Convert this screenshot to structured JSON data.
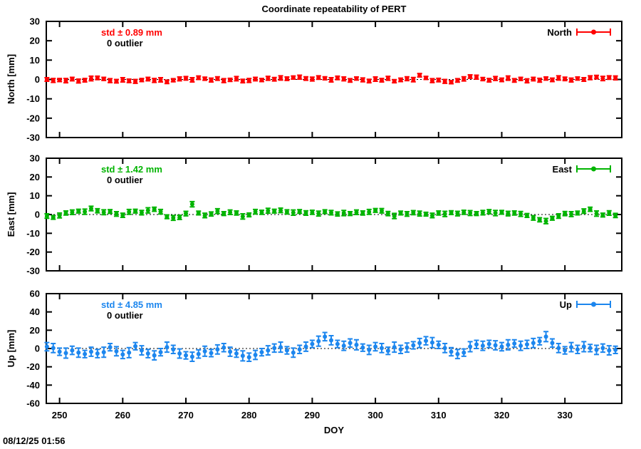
{
  "title": "Coordinate repeatability of PERT",
  "timestamp": "08/12/25 01:56",
  "xlabel": "DOY",
  "chart_data": [
    {
      "type": "errorbar",
      "name": "North",
      "legend": "North",
      "color": "#ff0000",
      "std_label": "std ± 0.89 mm",
      "outlier_label": "0 outlier",
      "ylabel": "North [mm]",
      "ylim": [
        -30,
        30
      ],
      "ytick_step": 10,
      "xlim": [
        247.9,
        339.0
      ],
      "xticks": [
        250,
        260,
        270,
        280,
        290,
        300,
        310,
        320,
        330
      ],
      "zero_line": true,
      "points": [
        [
          248,
          0.0,
          0.9
        ],
        [
          249,
          -0.5,
          1.0
        ],
        [
          250,
          -0.3,
          0.8
        ],
        [
          251,
          -0.6,
          1.1
        ],
        [
          252,
          0.2,
          0.9
        ],
        [
          253,
          -0.8,
          1.0
        ],
        [
          254,
          -0.4,
          0.9
        ],
        [
          255,
          0.5,
          1.2
        ],
        [
          256,
          0.8,
          0.9
        ],
        [
          257,
          0.3,
          0.8
        ],
        [
          258,
          -0.6,
          1.0
        ],
        [
          259,
          -0.9,
          0.9
        ],
        [
          260,
          -0.2,
          1.1
        ],
        [
          261,
          -0.7,
          0.9
        ],
        [
          262,
          -1.0,
          1.0
        ],
        [
          263,
          -0.3,
          0.8
        ],
        [
          264,
          0.2,
          0.9
        ],
        [
          265,
          -0.5,
          1.0
        ],
        [
          266,
          -0.2,
          1.1
        ],
        [
          267,
          -1.2,
          0.9
        ],
        [
          268,
          -0.4,
          0.8
        ],
        [
          269,
          0.3,
          1.0
        ],
        [
          270,
          0.6,
          0.9
        ],
        [
          271,
          -0.2,
          1.1
        ],
        [
          272,
          0.9,
          0.9
        ],
        [
          273,
          0.4,
          0.8
        ],
        [
          274,
          -0.3,
          1.0
        ],
        [
          275,
          0.5,
          0.9
        ],
        [
          276,
          -0.6,
          1.0
        ],
        [
          277,
          -0.2,
          0.8
        ],
        [
          278,
          0.4,
          1.1
        ],
        [
          279,
          -0.8,
          0.9
        ],
        [
          280,
          -0.5,
          1.0
        ],
        [
          281,
          0.2,
          0.9
        ],
        [
          282,
          -0.3,
          0.8
        ],
        [
          283,
          0.6,
          1.0
        ],
        [
          284,
          0.1,
          0.9
        ],
        [
          285,
          0.8,
          1.1
        ],
        [
          286,
          0.4,
          0.9
        ],
        [
          287,
          1.0,
          0.8
        ],
        [
          288,
          1.2,
          1.0
        ],
        [
          289,
          0.5,
          0.9
        ],
        [
          290,
          0.2,
          1.0
        ],
        [
          291,
          1.0,
          0.9
        ],
        [
          292,
          0.6,
          0.8
        ],
        [
          293,
          -0.2,
          1.1
        ],
        [
          294,
          0.8,
          0.9
        ],
        [
          295,
          0.3,
          1.0
        ],
        [
          296,
          -0.5,
          0.9
        ],
        [
          297,
          0.5,
          0.8
        ],
        [
          298,
          -0.2,
          1.0
        ],
        [
          299,
          -0.8,
          0.9
        ],
        [
          300,
          0.2,
          1.1
        ],
        [
          301,
          -0.4,
          0.9
        ],
        [
          302,
          0.6,
          1.0
        ],
        [
          303,
          -0.9,
          0.8
        ],
        [
          304,
          -0.2,
          0.9
        ],
        [
          305,
          0.4,
          1.0
        ],
        [
          306,
          -0.1,
          1.1
        ],
        [
          307,
          2.2,
          0.9
        ],
        [
          308,
          0.8,
          0.8
        ],
        [
          309,
          -0.6,
          1.0
        ],
        [
          310,
          -0.3,
          0.9
        ],
        [
          311,
          -1.0,
          1.0
        ],
        [
          312,
          -1.4,
          0.8
        ],
        [
          313,
          -0.5,
          0.9
        ],
        [
          314,
          0.3,
          1.1
        ],
        [
          315,
          1.5,
          0.9
        ],
        [
          316,
          1.2,
          1.0
        ],
        [
          317,
          0.2,
          0.8
        ],
        [
          318,
          -0.4,
          0.9
        ],
        [
          319,
          0.5,
          1.0
        ],
        [
          320,
          -0.2,
          0.9
        ],
        [
          321,
          0.7,
          1.1
        ],
        [
          322,
          -0.5,
          0.9
        ],
        [
          323,
          0.3,
          0.8
        ],
        [
          324,
          -0.7,
          1.0
        ],
        [
          325,
          0.2,
          0.9
        ],
        [
          326,
          -0.4,
          1.0
        ],
        [
          327,
          0.5,
          0.8
        ],
        [
          328,
          -0.2,
          0.9
        ],
        [
          329,
          0.8,
          1.1
        ],
        [
          330,
          0.3,
          0.9
        ],
        [
          331,
          -0.3,
          1.0
        ],
        [
          332,
          0.5,
          0.8
        ],
        [
          333,
          0.0,
          0.9
        ],
        [
          334,
          0.9,
          1.0
        ],
        [
          335,
          1.2,
          0.9
        ],
        [
          336,
          0.5,
          1.1
        ],
        [
          337,
          1.0,
          0.9
        ],
        [
          338,
          0.8,
          1.0
        ]
      ]
    },
    {
      "type": "errorbar",
      "name": "East",
      "legend": "East",
      "color": "#00b400",
      "std_label": "std ± 1.42 mm",
      "outlier_label": "0 outlier",
      "ylabel": "East [mm]",
      "ylim": [
        -30,
        30
      ],
      "ytick_step": 10,
      "xlim": [
        247.9,
        339.0
      ],
      "xticks": [
        250,
        260,
        270,
        280,
        290,
        300,
        310,
        320,
        330
      ],
      "zero_line": true,
      "points": [
        [
          248,
          -0.8,
          1.2
        ],
        [
          249,
          -1.5,
          1.0
        ],
        [
          250,
          -0.5,
          1.3
        ],
        [
          251,
          0.8,
          1.1
        ],
        [
          252,
          1.2,
          1.2
        ],
        [
          253,
          1.8,
          1.0
        ],
        [
          254,
          1.5,
          1.4
        ],
        [
          255,
          3.2,
          1.2
        ],
        [
          256,
          2.0,
          1.1
        ],
        [
          257,
          1.2,
          1.3
        ],
        [
          258,
          1.6,
          1.0
        ],
        [
          259,
          0.3,
          1.2
        ],
        [
          260,
          -0.4,
          1.1
        ],
        [
          261,
          1.4,
          1.3
        ],
        [
          262,
          1.8,
          1.0
        ],
        [
          263,
          1.0,
          1.2
        ],
        [
          264,
          2.2,
          1.4
        ],
        [
          265,
          2.8,
          1.1
        ],
        [
          266,
          1.5,
          1.2
        ],
        [
          267,
          -1.2,
          1.0
        ],
        [
          268,
          -1.8,
          1.3
        ],
        [
          269,
          -1.5,
          1.1
        ],
        [
          270,
          0.5,
          1.2
        ],
        [
          271,
          5.5,
          1.4
        ],
        [
          272,
          0.8,
          1.0
        ],
        [
          273,
          -0.5,
          1.2
        ],
        [
          274,
          0.3,
          1.1
        ],
        [
          275,
          1.8,
          1.3
        ],
        [
          276,
          0.5,
          1.0
        ],
        [
          277,
          1.2,
          1.2
        ],
        [
          278,
          0.8,
          1.1
        ],
        [
          279,
          -1.0,
          1.4
        ],
        [
          280,
          -0.2,
          1.0
        ],
        [
          281,
          1.5,
          1.2
        ],
        [
          282,
          1.2,
          1.1
        ],
        [
          283,
          2.0,
          1.3
        ],
        [
          284,
          1.8,
          1.0
        ],
        [
          285,
          2.2,
          1.2
        ],
        [
          286,
          1.4,
          1.1
        ],
        [
          287,
          1.0,
          1.4
        ],
        [
          288,
          1.6,
          1.0
        ],
        [
          289,
          0.8,
          1.2
        ],
        [
          290,
          1.2,
          1.1
        ],
        [
          291,
          0.5,
          1.3
        ],
        [
          292,
          1.5,
          1.0
        ],
        [
          293,
          1.0,
          1.2
        ],
        [
          294,
          0.3,
          1.1
        ],
        [
          295,
          0.8,
          1.4
        ],
        [
          296,
          0.5,
          1.0
        ],
        [
          297,
          1.2,
          1.2
        ],
        [
          298,
          0.8,
          1.1
        ],
        [
          299,
          1.4,
          1.3
        ],
        [
          300,
          2.2,
          1.0
        ],
        [
          301,
          2.0,
          1.2
        ],
        [
          302,
          0.5,
          1.1
        ],
        [
          303,
          -0.8,
          1.4
        ],
        [
          304,
          0.8,
          1.0
        ],
        [
          305,
          0.3,
          1.2
        ],
        [
          306,
          1.0,
          1.1
        ],
        [
          307,
          0.5,
          1.3
        ],
        [
          308,
          0.2,
          1.0
        ],
        [
          309,
          -0.5,
          1.2
        ],
        [
          310,
          0.8,
          1.1
        ],
        [
          311,
          0.3,
          1.4
        ],
        [
          312,
          1.0,
          1.0
        ],
        [
          313,
          0.5,
          1.2
        ],
        [
          314,
          1.2,
          1.1
        ],
        [
          315,
          0.8,
          1.3
        ],
        [
          316,
          0.5,
          1.0
        ],
        [
          317,
          1.0,
          1.2
        ],
        [
          318,
          1.5,
          1.1
        ],
        [
          319,
          0.8,
          1.4
        ],
        [
          320,
          1.2,
          1.0
        ],
        [
          321,
          0.5,
          1.2
        ],
        [
          322,
          0.8,
          1.1
        ],
        [
          323,
          0.3,
          1.3
        ],
        [
          324,
          -0.5,
          1.0
        ],
        [
          325,
          -1.8,
          1.2
        ],
        [
          326,
          -2.8,
          1.1
        ],
        [
          327,
          -3.5,
          1.4
        ],
        [
          328,
          -2.0,
          1.0
        ],
        [
          329,
          -0.8,
          1.2
        ],
        [
          330,
          0.5,
          1.1
        ],
        [
          331,
          0.2,
          1.3
        ],
        [
          332,
          0.8,
          1.0
        ],
        [
          333,
          1.8,
          1.2
        ],
        [
          334,
          2.8,
          1.1
        ],
        [
          335,
          0.5,
          1.4
        ],
        [
          336,
          -0.3,
          1.0
        ],
        [
          337,
          0.8,
          1.2
        ],
        [
          338,
          -0.5,
          1.1
        ]
      ]
    },
    {
      "type": "errorbar",
      "name": "Up",
      "legend": "Up",
      "color": "#1c86ee",
      "std_label": "std ± 4.85 mm",
      "outlier_label": "0 outlier",
      "ylabel": "Up [mm]",
      "ylim": [
        -60,
        60
      ],
      "ytick_step": 20,
      "xlim": [
        247.9,
        339.0
      ],
      "xticks": [
        250,
        260,
        270,
        280,
        290,
        300,
        310,
        320,
        330
      ],
      "zero_line": true,
      "points": [
        [
          248,
          2.0,
          4.5
        ],
        [
          249,
          0.5,
          5.0
        ],
        [
          250,
          -3.5,
          4.0
        ],
        [
          251,
          -5.0,
          5.5
        ],
        [
          252,
          -2.0,
          4.5
        ],
        [
          253,
          -4.5,
          5.0
        ],
        [
          254,
          -6.0,
          4.0
        ],
        [
          255,
          -3.5,
          5.0
        ],
        [
          256,
          -5.5,
          4.5
        ],
        [
          257,
          -4.0,
          5.5
        ],
        [
          258,
          1.5,
          4.0
        ],
        [
          259,
          -3.0,
          5.0
        ],
        [
          260,
          -6.5,
          4.5
        ],
        [
          261,
          -4.5,
          5.5
        ],
        [
          262,
          2.5,
          4.0
        ],
        [
          263,
          -2.0,
          5.0
        ],
        [
          264,
          -5.5,
          4.5
        ],
        [
          265,
          -7.5,
          5.0
        ],
        [
          266,
          -4.0,
          4.0
        ],
        [
          267,
          1.5,
          5.5
        ],
        [
          268,
          -1.0,
          4.5
        ],
        [
          269,
          -5.5,
          5.0
        ],
        [
          270,
          -7.5,
          4.0
        ],
        [
          271,
          -9.0,
          5.0
        ],
        [
          272,
          -6.0,
          4.5
        ],
        [
          273,
          -3.0,
          5.5
        ],
        [
          274,
          -5.0,
          4.0
        ],
        [
          275,
          -1.0,
          5.0
        ],
        [
          276,
          1.0,
          4.5
        ],
        [
          277,
          -3.5,
          5.0
        ],
        [
          278,
          -5.5,
          4.0
        ],
        [
          279,
          -8.0,
          5.5
        ],
        [
          280,
          -9.5,
          4.5
        ],
        [
          281,
          -7.0,
          5.0
        ],
        [
          282,
          -4.0,
          4.0
        ],
        [
          283,
          -2.0,
          5.0
        ],
        [
          284,
          0.5,
          4.5
        ],
        [
          285,
          1.5,
          5.5
        ],
        [
          286,
          -2.0,
          4.0
        ],
        [
          287,
          -4.5,
          5.0
        ],
        [
          288,
          -1.0,
          4.5
        ],
        [
          289,
          2.0,
          5.0
        ],
        [
          290,
          5.0,
          4.0
        ],
        [
          291,
          8.0,
          5.5
        ],
        [
          292,
          13.0,
          4.5
        ],
        [
          293,
          9.0,
          5.0
        ],
        [
          294,
          5.0,
          4.0
        ],
        [
          295,
          3.0,
          5.0
        ],
        [
          296,
          6.0,
          4.5
        ],
        [
          297,
          4.0,
          5.5
        ],
        [
          298,
          1.0,
          4.0
        ],
        [
          299,
          -1.5,
          5.0
        ],
        [
          300,
          2.0,
          4.5
        ],
        [
          301,
          0.5,
          5.0
        ],
        [
          302,
          -2.5,
          4.0
        ],
        [
          303,
          1.5,
          5.5
        ],
        [
          304,
          -1.0,
          4.5
        ],
        [
          305,
          1.0,
          5.0
        ],
        [
          306,
          3.5,
          4.0
        ],
        [
          307,
          6.0,
          5.0
        ],
        [
          308,
          8.5,
          4.5
        ],
        [
          309,
          6.5,
          5.5
        ],
        [
          310,
          4.0,
          4.0
        ],
        [
          311,
          0.5,
          5.0
        ],
        [
          312,
          -3.5,
          4.5
        ],
        [
          313,
          -6.0,
          5.0
        ],
        [
          314,
          -4.5,
          4.0
        ],
        [
          315,
          2.0,
          5.5
        ],
        [
          316,
          4.5,
          4.5
        ],
        [
          317,
          3.0,
          5.0
        ],
        [
          318,
          5.0,
          4.0
        ],
        [
          319,
          3.5,
          5.0
        ],
        [
          320,
          2.0,
          4.5
        ],
        [
          321,
          4.0,
          5.5
        ],
        [
          322,
          5.5,
          4.0
        ],
        [
          323,
          3.0,
          5.0
        ],
        [
          324,
          4.5,
          4.5
        ],
        [
          325,
          6.0,
          5.0
        ],
        [
          326,
          8.0,
          4.0
        ],
        [
          327,
          13.0,
          5.5
        ],
        [
          328,
          6.0,
          4.5
        ],
        [
          329,
          0.5,
          5.0
        ],
        [
          330,
          -2.0,
          4.0
        ],
        [
          331,
          1.5,
          5.0
        ],
        [
          332,
          -1.0,
          4.5
        ],
        [
          333,
          2.0,
          5.5
        ],
        [
          334,
          0.5,
          4.0
        ],
        [
          335,
          -1.5,
          5.0
        ],
        [
          336,
          0.5,
          4.5
        ],
        [
          337,
          -2.0,
          5.0
        ],
        [
          338,
          -1.5,
          4.0
        ]
      ]
    }
  ]
}
